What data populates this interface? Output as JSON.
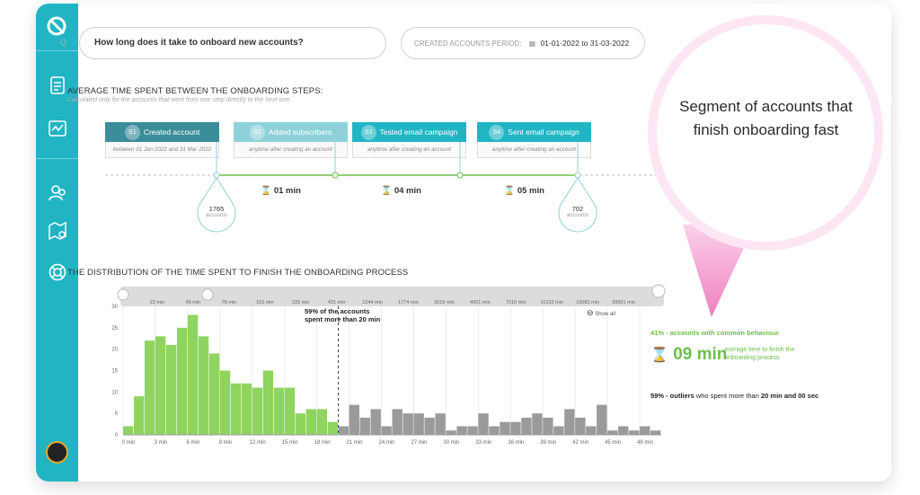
{
  "query": {
    "icon": "question-icon",
    "question": "How long does it take to onboard new accounts?"
  },
  "period": {
    "label": "CREATED ACCOUNTS PERIOD:",
    "icon": "calendar-icon",
    "value": "01-01-2022 to 31-03-2022"
  },
  "onboarding": {
    "title": "AVERAGE TIME SPENT BETWEEN THE ONBOARDING STEPS:",
    "subtitle": "Calculated only for the accounts that went from one step directly to the next one.",
    "steps": [
      {
        "num": "S1",
        "label": "Created account",
        "note": "between 01 Jan 2022 and 31 Mar 2022",
        "color": "#3b8d9a"
      },
      {
        "num": "S2",
        "label": "Added subscribers",
        "note": "anytime after creating an account",
        "color": "#8fd1d9"
      },
      {
        "num": "S3",
        "label": "Tested email campaign",
        "note": "anytime after creating an account",
        "color": "#21b5c4"
      },
      {
        "num": "S4",
        "label": "Sent email campaign",
        "note": "anytime after creating an account",
        "color": "#21b5c4"
      }
    ],
    "durations": [
      "01 min",
      "04 min",
      "05 min"
    ],
    "start_count": "1765",
    "end_count": "702",
    "count_unit": "accounts"
  },
  "distribution": {
    "title": "THE DISTRIBUTION OF THE TIME SPENT TO FINISH THE ONBOARDING PROCESS",
    "outliers_label_line1": "59% of the accounts",
    "outliers_label_line2": "spent more than 20  min",
    "show_all": "Show all"
  },
  "chart_data": {
    "type": "bar",
    "ylim": [
      0,
      30
    ],
    "yticks": [
      0,
      5,
      10,
      15,
      20,
      25,
      30
    ],
    "x_tick_labels": [
      "0 min",
      "3 min",
      "6 min",
      "9 min",
      "12 min",
      "15 min",
      "18 min",
      "21 min",
      "24 min",
      "27 min",
      "30 min",
      "33 min",
      "36 min",
      "39 min",
      "42 min",
      "45 min",
      "48 min"
    ],
    "top_axis_labels": [
      "23 min",
      "46 min",
      "78 min",
      "153 min",
      "225 min",
      "431 min",
      "1244 min",
      "1774 min",
      "3019 min",
      "4601 min",
      "7210 min",
      "10132 min",
      "16082 min",
      "39901 min"
    ],
    "threshold_min": 20,
    "bin_width_min": 1,
    "series": [
      {
        "group": "common",
        "color": "#8fd45e",
        "values": [
          2,
          9,
          22,
          23,
          21,
          25,
          28,
          23,
          19,
          15,
          12,
          12,
          11,
          15,
          11,
          11,
          5,
          6,
          6,
          3
        ]
      },
      {
        "group": "outliers",
        "color": "#9a9a9a",
        "values": [
          2,
          7,
          4,
          6,
          2,
          6,
          5,
          5,
          4,
          5,
          1,
          2,
          2,
          5,
          2,
          3,
          3,
          4,
          5,
          4,
          2,
          6,
          4,
          2,
          7,
          1,
          2,
          1,
          2,
          1
        ]
      }
    ]
  },
  "summary": {
    "common_label": "41% - accounts with common behaviour",
    "common_value": "09 min",
    "common_caption": "average time to finish the onboarding process",
    "outliers_prefix": "59% - outliers",
    "outliers_text": " who spent more than ",
    "outliers_strong": "20 min and 00 sec"
  },
  "callout": {
    "text": "Segment of accounts that finish onboarding fast"
  },
  "colors": {
    "sidebar": "#21b5c4",
    "green": "#6cc04a",
    "bar_green": "#8fd45e",
    "bar_gray": "#9a9a9a",
    "pink": "#f28ec7"
  }
}
